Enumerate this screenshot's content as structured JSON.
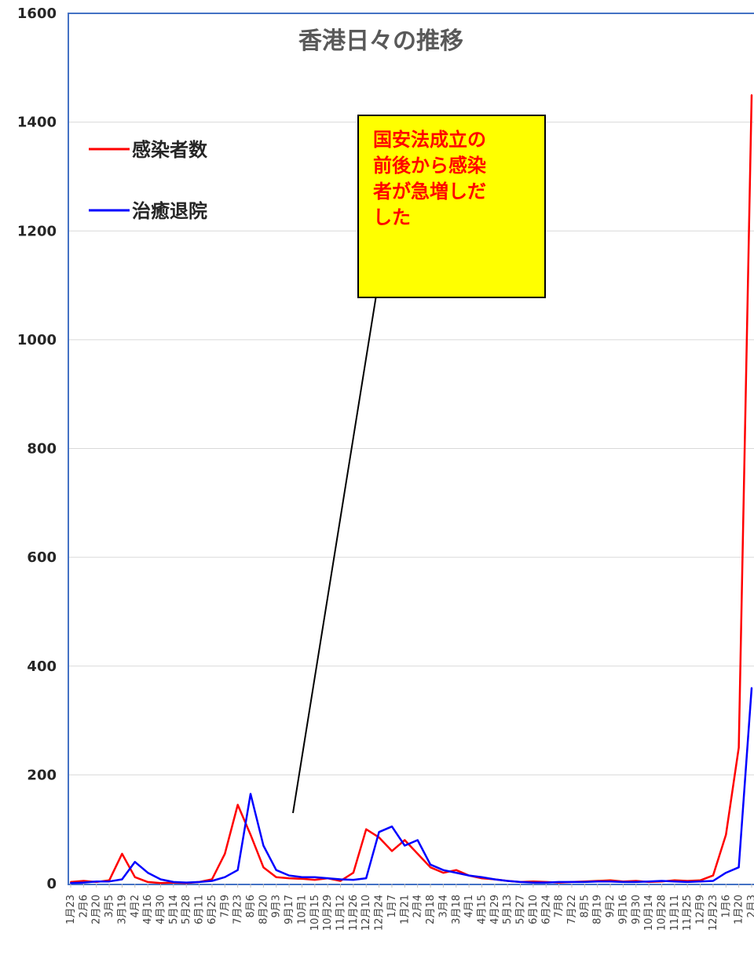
{
  "chart_data": {
    "type": "line",
    "title": "香港日々の推移",
    "ylim": [
      0,
      1600
    ],
    "yticks": [
      "0",
      "200",
      "400",
      "600",
      "800",
      "1000",
      "1200",
      "1400",
      "1600"
    ],
    "xlabel": "",
    "ylabel": "",
    "grid": "horizontal",
    "legend": "top-left",
    "annotation": "国安法成立の前後から感染者が急増しだした",
    "annotation_lines": [
      "国安法成立の",
      "前後から感染",
      "者が急増しだ",
      "した"
    ],
    "categories": [
      "1月23",
      "2月6",
      "2月20",
      "3月5",
      "3月19",
      "4月2",
      "4月16",
      "4月30",
      "5月14",
      "5月28",
      "6月11",
      "6月25",
      "7月9",
      "7月23",
      "8月6",
      "8月20",
      "9月3",
      "9月17",
      "10月1",
      "10月15",
      "10月29",
      "11月12",
      "11月26",
      "12月10",
      "12月24",
      "1月7",
      "1月21",
      "2月4",
      "2月18",
      "3月4",
      "3月18",
      "4月1",
      "4月15",
      "4月29",
      "5月13",
      "5月27",
      "6月10",
      "6月24",
      "7月8",
      "7月22",
      "8月5",
      "8月19",
      "9月2",
      "9月16",
      "9月30",
      "10月14",
      "10月28",
      "11月11",
      "11月25",
      "12月9",
      "12月23",
      "1月6",
      "1月20",
      "2月3"
    ],
    "series": [
      {
        "name": "感染者数",
        "color": "#ff0000",
        "values": [
          3,
          5,
          3,
          6,
          55,
          12,
          3,
          1,
          2,
          1,
          3,
          8,
          55,
          145,
          90,
          30,
          12,
          10,
          9,
          7,
          10,
          5,
          20,
          100,
          85,
          60,
          80,
          55,
          30,
          20,
          25,
          15,
          10,
          8,
          5,
          3,
          4,
          3,
          2,
          3,
          4,
          5,
          6,
          4,
          5,
          3,
          4,
          6,
          5,
          6,
          15,
          90,
          250,
          1450
        ]
      },
      {
        "name": "治癒退院",
        "color": "#0000ff",
        "values": [
          1,
          2,
          4,
          4,
          8,
          40,
          20,
          8,
          3,
          2,
          3,
          5,
          12,
          25,
          165,
          70,
          25,
          15,
          12,
          12,
          10,
          8,
          7,
          10,
          95,
          105,
          70,
          80,
          35,
          25,
          20,
          15,
          12,
          8,
          5,
          3,
          2,
          2,
          3,
          3,
          3,
          4,
          4,
          3,
          3,
          4,
          5,
          4,
          3,
          4,
          5,
          20,
          30,
          360
        ]
      }
    ]
  }
}
